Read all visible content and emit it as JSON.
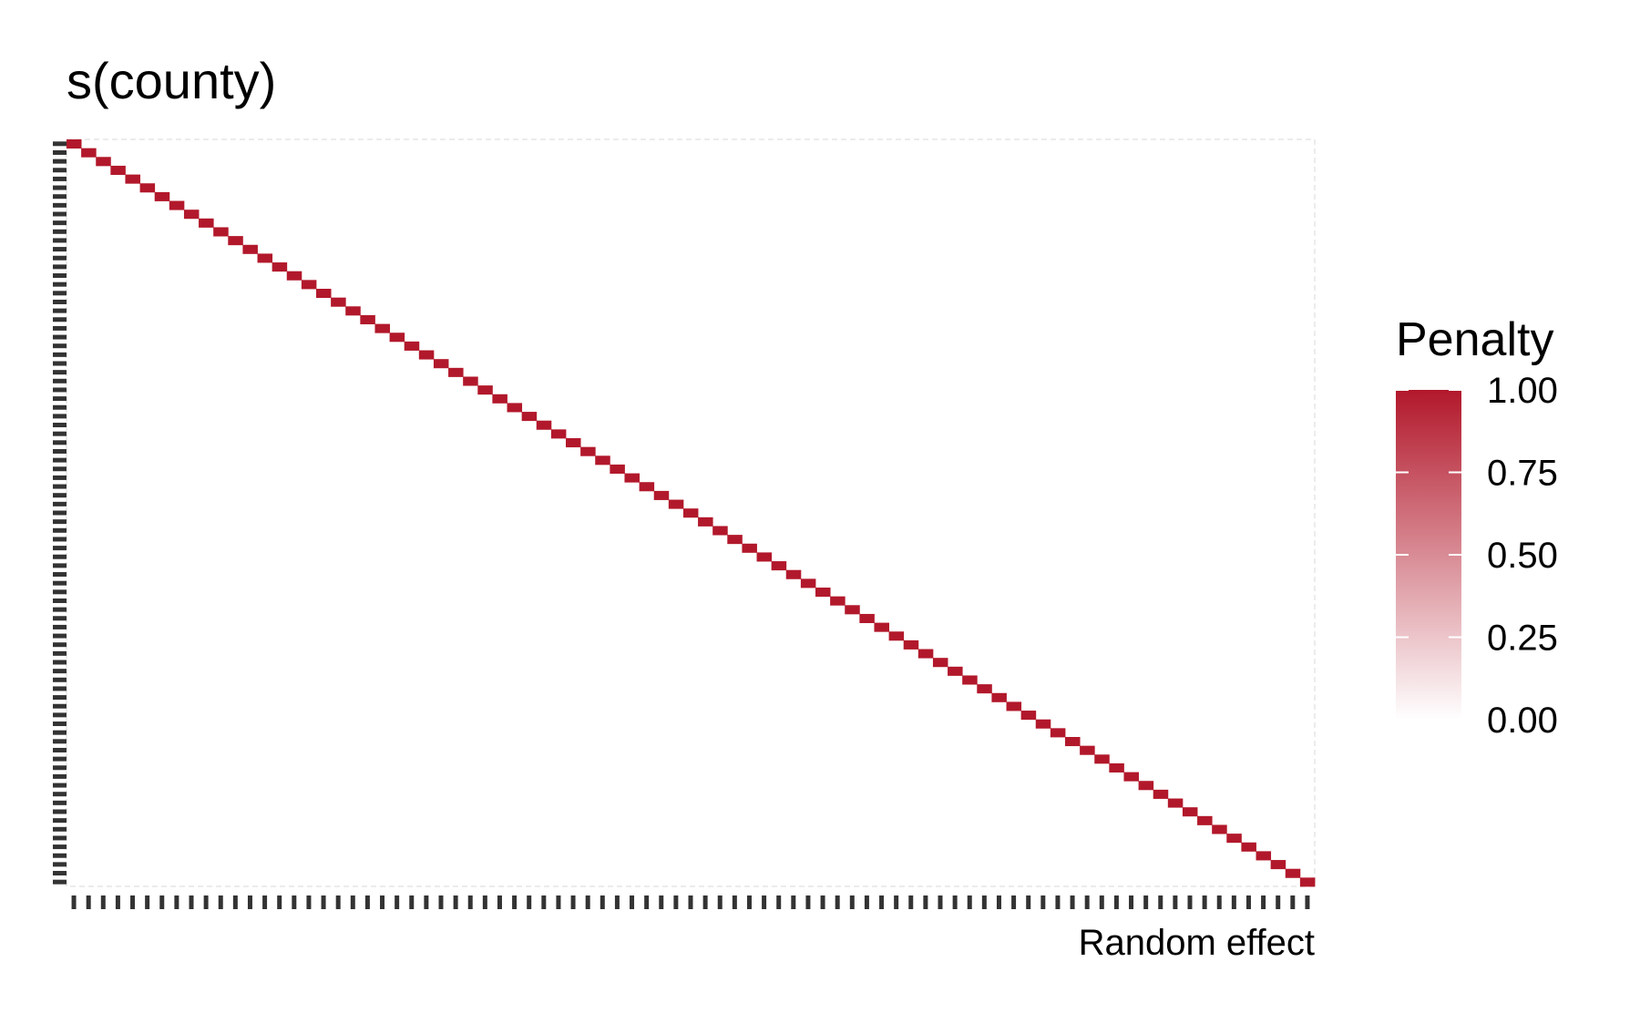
{
  "chart_data": {
    "type": "heatmap",
    "title": "s(county)",
    "xlabel": "Random effect",
    "ylabel": "",
    "n_levels": 85,
    "matrix": "identity",
    "diagonal_value": 1.0,
    "off_diagonal_value": 0.0,
    "grid": false,
    "legend": {
      "title": "Penalty",
      "placement": "right",
      "range": [
        0,
        1
      ],
      "ticks": [
        "1.00",
        "0.75",
        "0.50",
        "0.25",
        "0.00"
      ],
      "tick_values": [
        1.0,
        0.75,
        0.5,
        0.25,
        0.0
      ],
      "color_low": "#ffffff",
      "color_high": "#b2182b"
    }
  }
}
